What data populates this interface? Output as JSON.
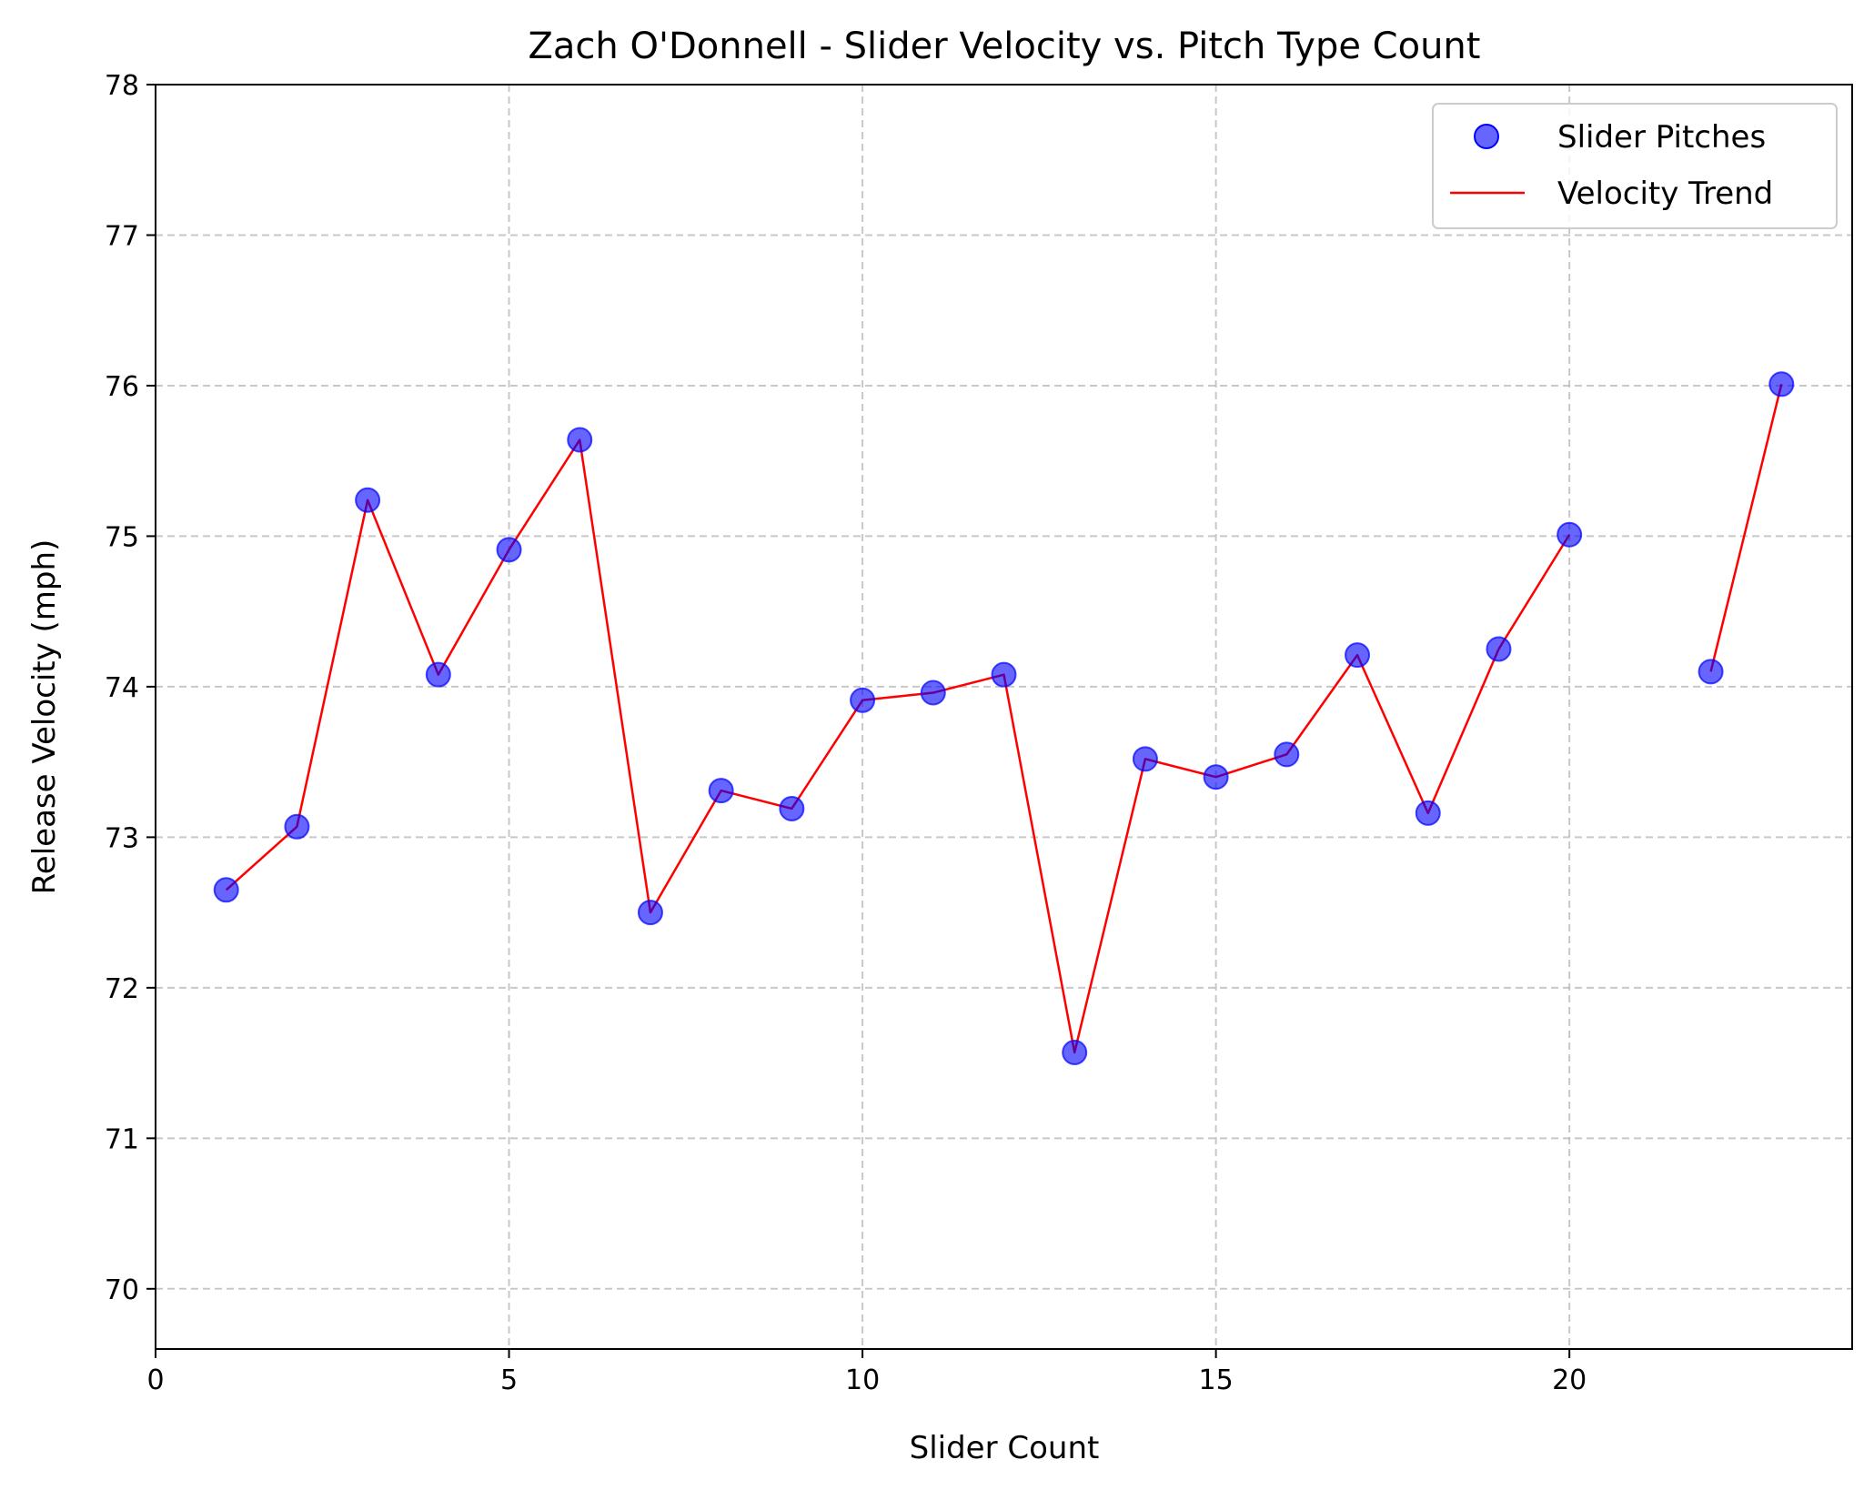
{
  "chart_data": {
    "type": "scatter",
    "title": "Zach O'Donnell - Slider Velocity vs. Pitch Type Count",
    "xlabel": "Slider Count",
    "ylabel": "Release Velocity (mph)",
    "xlim": [
      0,
      24
    ],
    "ylim": [
      69.6,
      78
    ],
    "xticks": [
      0,
      5,
      10,
      15,
      20
    ],
    "yticks": [
      70,
      71,
      72,
      73,
      74,
      75,
      76,
      77,
      78
    ],
    "grid": true,
    "legend_position": "top-right",
    "series": [
      {
        "name": "Slider Pitches",
        "kind": "scatter",
        "color": "#0000ff",
        "x": [
          1,
          2,
          3,
          4,
          5,
          6,
          7,
          8,
          9,
          10,
          11,
          12,
          13,
          14,
          15,
          16,
          17,
          18,
          19,
          20,
          22,
          23
        ],
        "y": [
          72.65,
          73.07,
          75.24,
          74.08,
          74.91,
          75.64,
          72.5,
          73.31,
          73.19,
          73.91,
          73.96,
          74.08,
          71.57,
          73.52,
          73.4,
          73.55,
          74.21,
          73.16,
          74.25,
          75.01,
          74.1,
          76.01
        ]
      },
      {
        "name": "Velocity Trend",
        "kind": "line",
        "color": "#ff0000",
        "segments": [
          {
            "x": [
              1,
              2,
              3,
              4,
              5,
              6,
              7,
              8,
              9,
              10,
              11,
              12,
              13,
              14,
              15,
              16,
              17,
              18,
              19,
              20
            ],
            "y": [
              72.65,
              73.07,
              75.24,
              74.08,
              74.91,
              75.64,
              72.5,
              73.31,
              73.19,
              73.91,
              73.96,
              74.08,
              71.57,
              73.52,
              73.4,
              73.55,
              74.21,
              73.16,
              74.25,
              75.01
            ]
          },
          {
            "x": [
              22,
              23
            ],
            "y": [
              74.1,
              76.01
            ]
          }
        ]
      }
    ]
  }
}
